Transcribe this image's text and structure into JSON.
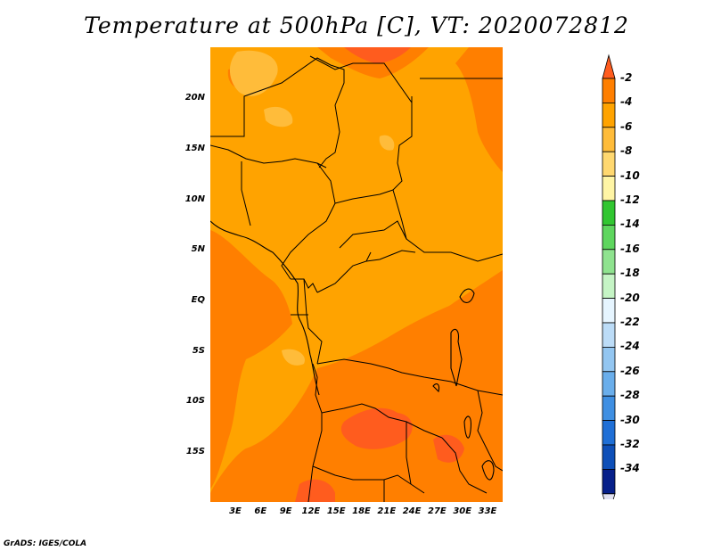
{
  "title": "Temperature at 500hPa [C], VT: 2020072812",
  "credit": "GrADS: IGES/COLA",
  "map": {
    "lat_labels": [
      "20N",
      "15N",
      "10N",
      "5N",
      "EQ",
      "5S",
      "10S",
      "15S"
    ],
    "lon_labels": [
      "3E",
      "6E",
      "9E",
      "12E",
      "15E",
      "18E",
      "21E",
      "24E",
      "27E",
      "30E",
      "33E"
    ]
  },
  "colorbar": {
    "labels": [
      "-2",
      "-4",
      "-6",
      "-8",
      "-10",
      "-12",
      "-14",
      "-16",
      "-18",
      "-20",
      "-22",
      "-24",
      "-26",
      "-28",
      "-30",
      "-32",
      "-34"
    ],
    "colors": [
      "#ff5c1e",
      "#ff7f00",
      "#ffa300",
      "#ffbc3a",
      "#ffd870",
      "#fff5a5",
      "#31c631",
      "#5ed65e",
      "#8fe38f",
      "#c5f4c5",
      "#e6f5ff",
      "#bcdcf7",
      "#93c6f1",
      "#6aaeeb",
      "#3f8fe2",
      "#1f6fd6",
      "#0e4fb8",
      "#07208a"
    ],
    "bottom_arrow_color": "#e1e1f0"
  },
  "chart_data": {
    "type": "heatmap",
    "title": "Temperature at 500hPa [C], VT: 2020072812",
    "variable": "Temperature at 500hPa",
    "units": "C",
    "valid_time": "2020072812",
    "region": {
      "lon_range": [
        0,
        34
      ],
      "lat_range": [
        -20,
        25
      ]
    },
    "contour_levels": [
      -34,
      -32,
      -30,
      -28,
      -26,
      -24,
      -22,
      -20,
      -18,
      -16,
      -14,
      -12,
      -10,
      -8,
      -6,
      -4,
      -2
    ],
    "dominant_range_north": [
      -6,
      -4
    ],
    "dominant_range_south": [
      -4,
      -2
    ],
    "max_band_southern_interior": [
      -2,
      0
    ]
  }
}
